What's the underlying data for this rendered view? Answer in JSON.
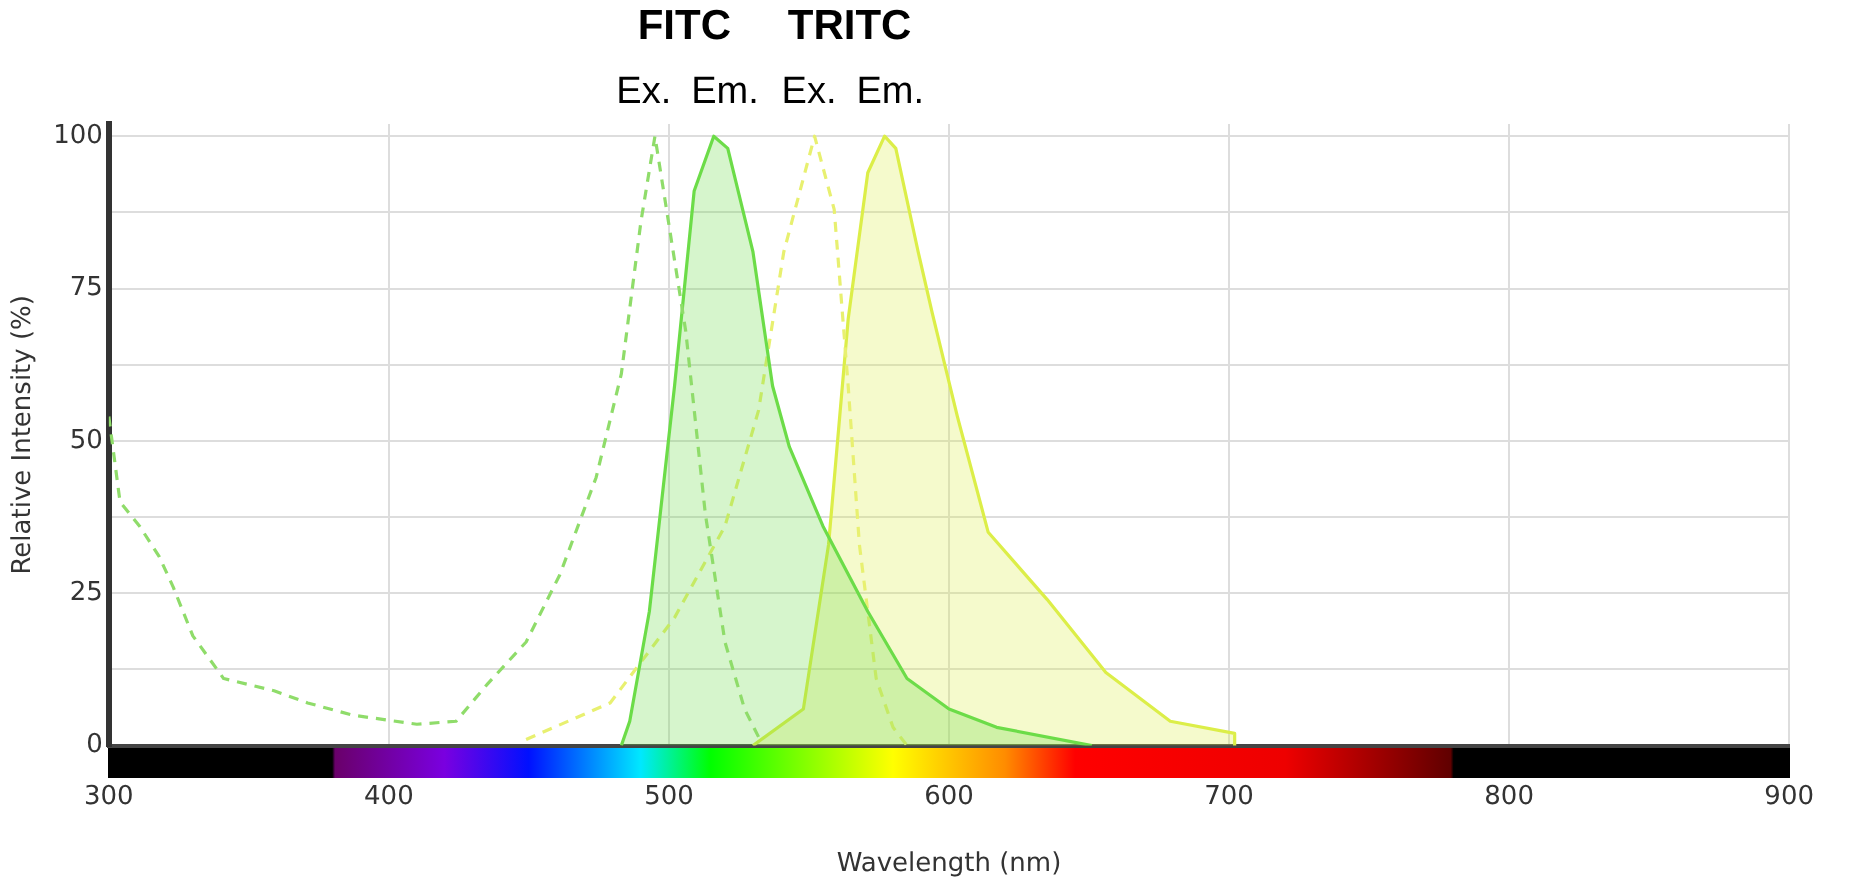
{
  "chart_data": {
    "type": "line",
    "xlabel": "Wavelength (nm)",
    "ylabel": "Relative Intensity (%)",
    "xlim": [
      300,
      900
    ],
    "xticks": [
      300,
      400,
      500,
      600,
      700,
      800,
      900
    ],
    "ylim": [
      0,
      102
    ],
    "yticks": [
      0,
      {
        "value": 12.5,
        "label": null
      },
      25,
      {
        "value": 37.5,
        "label": null
      },
      50,
      {
        "value": 62.5,
        "label": null
      },
      75,
      {
        "value": 87.5,
        "label": null
      },
      100
    ],
    "grid": true,
    "legend": false,
    "marker": "none",
    "annotations": [
      "FITC",
      "TRITC"
    ],
    "series": [
      {
        "name": "Ex.",
        "type": "line",
        "line_style": "dashed",
        "color": "#8fdc6a",
        "x": [
          300,
          304,
          311,
          318,
          323,
          330,
          341,
          359,
          371,
          387,
          410,
          424,
          435,
          449,
          461,
          474,
          483,
          490,
          495,
          506,
          513,
          520,
          527,
          533
        ],
        "values": [
          54,
          40,
          36,
          31,
          26,
          18,
          11,
          9,
          7,
          5,
          3.5,
          4,
          10,
          17,
          28,
          44,
          61,
          86,
          100,
          68,
          38,
          17,
          6,
          0.5
        ]
      },
      {
        "name": "Em.",
        "type": "area",
        "line_style": "solid",
        "color": "#6cdc48",
        "x": [
          483,
          486,
          493,
          502,
          509,
          516,
          521,
          530,
          537,
          543,
          555,
          571,
          585,
          600,
          617,
          651
        ],
        "values": [
          0,
          4,
          22,
          59,
          91,
          100,
          98,
          81,
          59,
          49,
          36,
          22,
          11,
          6,
          3,
          0
        ]
      },
      {
        "name": "Ex.",
        "type": "line",
        "line_style": "dashed",
        "color": "#e8f070",
        "x": [
          449,
          479,
          502,
          520,
          532,
          541,
          552,
          559,
          564,
          568,
          574,
          580,
          585
        ],
        "values": [
          1,
          7,
          21,
          36,
          55,
          81,
          100,
          88,
          59,
          33,
          11,
          3,
          0
        ]
      },
      {
        "name": "Em.",
        "type": "area",
        "line_style": "solid",
        "color": "#dcee48",
        "x": [
          530,
          548,
          557,
          564,
          571,
          577,
          581,
          589,
          594,
          603,
          614,
          635,
          656,
          679,
          702,
          702
        ],
        "values": [
          0,
          6,
          33,
          70,
          94,
          100,
          98,
          81,
          71,
          54,
          35,
          24,
          12,
          4,
          2,
          0
        ]
      }
    ]
  }
}
